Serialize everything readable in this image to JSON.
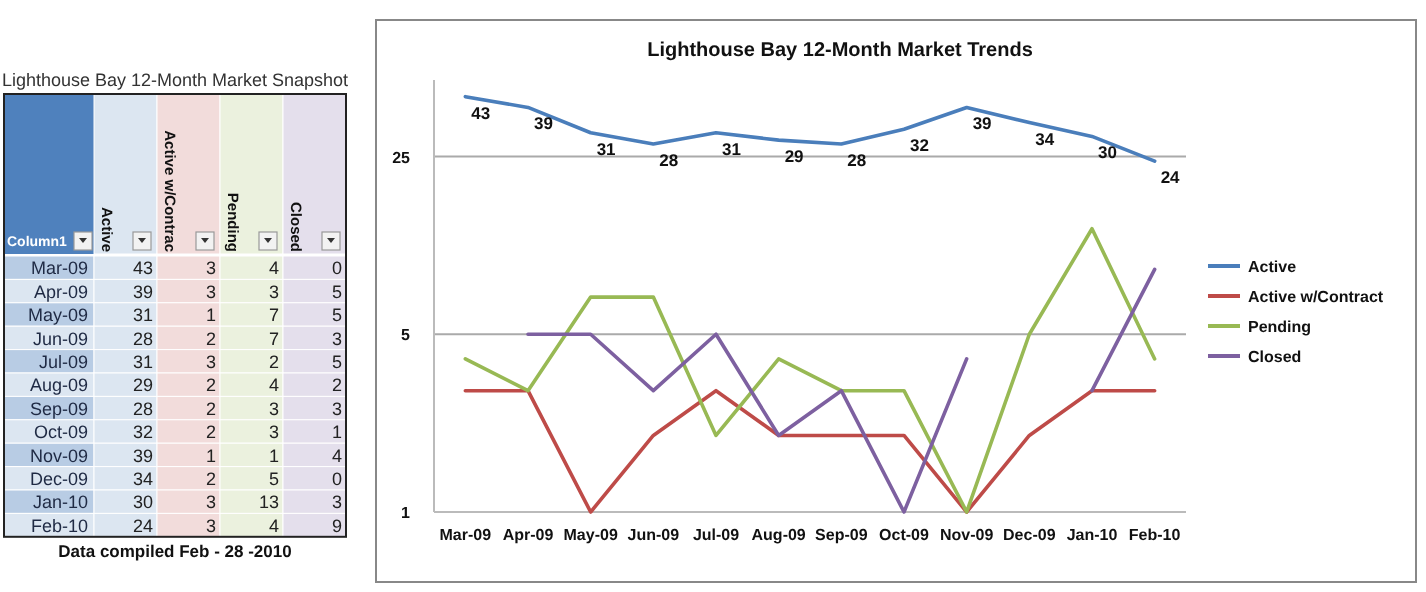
{
  "chart_data": [
    {
      "type": "other",
      "title": "Lighthouse Bay 12-Month Market Snapshot",
      "xlabel": "Column1",
      "categories": [
        "Mar-09",
        "Apr-09",
        "May-09",
        "Jun-09",
        "Jul-09",
        "Aug-09",
        "Sep-09",
        "Oct-09",
        "Nov-09",
        "Dec-09",
        "Jan-10",
        "Feb-10"
      ],
      "data_labels": true,
      "series": [
        {
          "name": "Active",
          "color": "#dce6f1",
          "values": [
            43,
            39,
            31,
            28,
            31,
            29,
            28,
            32,
            39,
            34,
            30,
            24
          ]
        },
        {
          "name": "Active w/Contrac",
          "color": "#f2dcdb",
          "values": [
            3,
            3,
            1,
            2,
            3,
            2,
            2,
            2,
            1,
            2,
            3,
            3
          ]
        },
        {
          "name": "Pending",
          "color": "#ebf1de",
          "values": [
            4,
            3,
            7,
            7,
            2,
            4,
            3,
            3,
            1,
            5,
            13,
            4
          ]
        },
        {
          "name": "Closed",
          "color": "#e4dfec",
          "values": [
            0,
            5,
            5,
            3,
            5,
            2,
            3,
            1,
            4,
            0,
            3,
            9
          ]
        }
      ],
      "annotations": [
        "Data compiled Feb - 28 -2010"
      ]
    },
    {
      "type": "line",
      "title": "Lighthouse Bay 12-Month Market Trends",
      "categories": [
        "Mar-09",
        "Apr-09",
        "May-09",
        "Jun-09",
        "Jul-09",
        "Aug-09",
        "Sep-09",
        "Oct-09",
        "Nov-09",
        "Dec-09",
        "Jan-10",
        "Feb-10"
      ],
      "log": "y",
      "ylim": [
        1,
        50
      ],
      "yticks": [
        1,
        5,
        25
      ],
      "grid": "y",
      "legend": "right",
      "marker": "none",
      "line_style": "solid",
      "series": [
        {
          "name": "Active",
          "color": "#4a7ebb",
          "values": [
            43,
            39,
            31,
            28,
            31,
            29,
            28,
            32,
            39,
            34,
            30,
            24
          ],
          "value_labels": [
            "43",
            "39",
            "31",
            "28",
            "31",
            "29",
            "28",
            "32",
            "39",
            "34",
            "30",
            "24"
          ]
        },
        {
          "name": "Active w/Contract",
          "color": "#be4b48",
          "values": [
            3,
            3,
            1,
            2,
            3,
            2,
            2,
            2,
            1,
            2,
            3,
            3
          ]
        },
        {
          "name": "Pending",
          "color": "#98b954",
          "values": [
            4,
            3,
            7,
            7,
            2,
            4,
            3,
            3,
            1,
            5,
            13,
            4
          ]
        },
        {
          "name": "Closed",
          "color": "#7d60a0",
          "values": [
            null,
            5,
            5,
            3,
            5,
            2,
            3,
            1,
            4,
            null,
            3,
            9
          ]
        }
      ]
    }
  ]
}
